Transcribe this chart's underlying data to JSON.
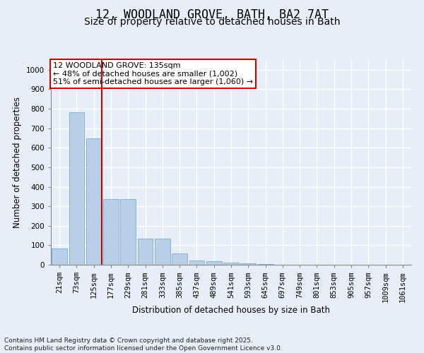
{
  "title": "12, WOODLAND GROVE, BATH, BA2 7AT",
  "subtitle": "Size of property relative to detached houses in Bath",
  "xlabel": "Distribution of detached houses by size in Bath",
  "ylabel": "Number of detached properties",
  "categories": [
    "21sqm",
    "73sqm",
    "125sqm",
    "177sqm",
    "229sqm",
    "281sqm",
    "333sqm",
    "385sqm",
    "437sqm",
    "489sqm",
    "541sqm",
    "593sqm",
    "645sqm",
    "697sqm",
    "749sqm",
    "801sqm",
    "853sqm",
    "905sqm",
    "957sqm",
    "1009sqm",
    "1061sqm"
  ],
  "values": [
    83,
    783,
    648,
    335,
    335,
    133,
    133,
    58,
    22,
    18,
    10,
    7,
    5,
    0,
    0,
    0,
    0,
    0,
    0,
    0,
    0
  ],
  "bar_color": "#b8cfe8",
  "bar_edge_color": "#7aadd4",
  "vline_x_index": 2,
  "vline_color": "#cc0000",
  "annotation_text": "12 WOODLAND GROVE: 135sqm\n← 48% of detached houses are smaller (1,002)\n51% of semi-detached houses are larger (1,060) →",
  "annotation_box_facecolor": "#ffffff",
  "annotation_box_edgecolor": "#cc0000",
  "ylim": [
    0,
    1050
  ],
  "yticks": [
    0,
    100,
    200,
    300,
    400,
    500,
    600,
    700,
    800,
    900,
    1000
  ],
  "background_color": "#e8eef8",
  "grid_color": "#ffffff",
  "footer": "Contains HM Land Registry data © Crown copyright and database right 2025.\nContains public sector information licensed under the Open Government Licence v3.0.",
  "title_fontsize": 12,
  "subtitle_fontsize": 10,
  "axis_label_fontsize": 8.5,
  "tick_fontsize": 7.5,
  "annotation_fontsize": 8,
  "footer_fontsize": 6.5
}
